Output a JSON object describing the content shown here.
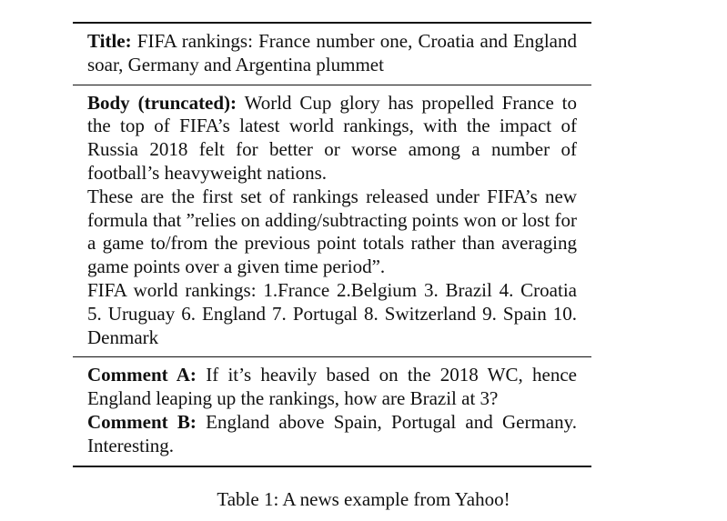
{
  "table": {
    "title": {
      "label": "Title:",
      "text": "FIFA rankings: France number one, Croatia and England soar, Germany and Argentina plummet"
    },
    "body": {
      "label": "Body (truncated):",
      "paragraphs": [
        "World Cup glory has propelled France to the top of FIFA’s latest world rankings, with the impact of Russia 2018 felt for better or worse among a number of football’s heavyweight nations.",
        "These are the first set of rankings released under FIFA’s new formula that ”relies on adding/subtracting points won or lost for a game to/from the previous point totals rather than averaging game points over a given time period”.",
        "FIFA world rankings: 1.France 2.Belgium 3. Brazil 4. Croatia 5. Uruguay 6. England 7. Portugal 8. Switzer­land 9. Spain 10. Denmark"
      ]
    },
    "comments": [
      {
        "label": "Comment A:",
        "text": "If it’s heavily based on the 2018 WC, hence England leaping up the rankings, how are Brazil at 3?"
      },
      {
        "label": "Comment B:",
        "text": "England above Spain, Portugal and Ger­many. Interesting."
      }
    ]
  },
  "caption": "Table 1: A news example from Yahoo!"
}
